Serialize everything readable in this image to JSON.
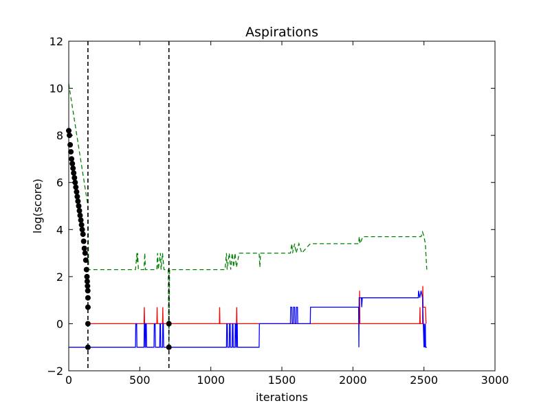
{
  "chart_data": {
    "type": "line",
    "title": "Aspirations",
    "xlabel": "iterations",
    "ylabel": "log(score)",
    "xlim": [
      0,
      3000
    ],
    "ylim": [
      -2,
      12
    ],
    "xticks": [
      "0",
      "500",
      "1000",
      "1500",
      "2000",
      "2500",
      "3000"
    ],
    "yticks": [
      "−2",
      "0",
      "2",
      "4",
      "6",
      "8",
      "10",
      "12"
    ],
    "grid": false,
    "legend": "none",
    "vlines": [
      135,
      705
    ],
    "series": [
      {
        "color": "#008000",
        "style": "dashed",
        "points": [
          [
            0,
            10.2
          ],
          [
            5,
            10.0
          ],
          [
            135,
            5.0
          ],
          [
            140,
            2.3
          ],
          [
            470,
            2.3
          ],
          [
            480,
            3.0
          ],
          [
            482,
            2.6
          ],
          [
            485,
            3.0
          ],
          [
            490,
            2.3
          ],
          [
            530,
            2.3
          ],
          [
            535,
            3.0
          ],
          [
            540,
            2.3
          ],
          [
            620,
            2.3
          ],
          [
            625,
            3.0
          ],
          [
            630,
            2.3
          ],
          [
            645,
            3.0
          ],
          [
            650,
            2.3
          ],
          [
            660,
            3.0
          ],
          [
            670,
            2.3
          ],
          [
            700,
            2.3
          ],
          [
            705,
            -1.0
          ],
          [
            710,
            2.3
          ],
          [
            1100,
            2.3
          ],
          [
            1110,
            3.0
          ],
          [
            1115,
            2.3
          ],
          [
            1130,
            3.0
          ],
          [
            1140,
            2.3
          ],
          [
            1150,
            3.0
          ],
          [
            1160,
            2.4
          ],
          [
            1170,
            3.0
          ],
          [
            1180,
            2.4
          ],
          [
            1200,
            3.0
          ],
          [
            1340,
            3.0
          ],
          [
            1345,
            2.4
          ],
          [
            1350,
            3.0
          ],
          [
            1560,
            3.0
          ],
          [
            1570,
            3.4
          ],
          [
            1575,
            3.0
          ],
          [
            1590,
            3.4
          ],
          [
            1600,
            3.0
          ],
          [
            1620,
            3.4
          ],
          [
            1640,
            3.0
          ],
          [
            1700,
            3.4
          ],
          [
            2040,
            3.4
          ],
          [
            2045,
            3.7
          ],
          [
            2050,
            3.4
          ],
          [
            2070,
            3.7
          ],
          [
            2480,
            3.7
          ],
          [
            2490,
            3.9
          ],
          [
            2500,
            3.7
          ],
          [
            2510,
            3.4
          ],
          [
            2515,
            2.8
          ],
          [
            2520,
            2.3
          ]
        ]
      },
      {
        "color": "#ff0000",
        "style": "solid",
        "points": [
          [
            135,
            0.0
          ],
          [
            530,
            0.0
          ],
          [
            532,
            0.7
          ],
          [
            534,
            0.0
          ],
          [
            620,
            0.0
          ],
          [
            622,
            0.7
          ],
          [
            624,
            0.0
          ],
          [
            660,
            0.0
          ],
          [
            662,
            0.7
          ],
          [
            664,
            0.0
          ],
          [
            1060,
            0.0
          ],
          [
            1062,
            0.7
          ],
          [
            1064,
            0.0
          ],
          [
            1180,
            0.0
          ],
          [
            1182,
            0.7
          ],
          [
            1184,
            0.0
          ],
          [
            2045,
            0.0
          ],
          [
            2047,
            1.4
          ],
          [
            2049,
            0.0
          ],
          [
            2470,
            0.0
          ],
          [
            2472,
            0.7
          ],
          [
            2474,
            0.0
          ],
          [
            2490,
            0.0
          ],
          [
            2492,
            1.6
          ],
          [
            2494,
            0.7
          ],
          [
            2510,
            0.7
          ],
          [
            2515,
            0.0
          ]
        ]
      },
      {
        "color": "#0000ff",
        "style": "solid",
        "points": [
          [
            0,
            -1.0
          ],
          [
            470,
            -1.0
          ],
          [
            472,
            0.0
          ],
          [
            478,
            0.0
          ],
          [
            480,
            -1.0
          ],
          [
            530,
            -1.0
          ],
          [
            532,
            0.0
          ],
          [
            536,
            0.0
          ],
          [
            538,
            -1.0
          ],
          [
            540,
            -1.0
          ],
          [
            542,
            0.0
          ],
          [
            546,
            0.0
          ],
          [
            548,
            -1.0
          ],
          [
            600,
            -1.0
          ],
          [
            602,
            0.0
          ],
          [
            608,
            0.0
          ],
          [
            610,
            -1.0
          ],
          [
            640,
            -1.0
          ],
          [
            642,
            0.0
          ],
          [
            646,
            0.0
          ],
          [
            648,
            -1.0
          ],
          [
            660,
            -1.0
          ],
          [
            662,
            0.0
          ],
          [
            666,
            0.0
          ],
          [
            668,
            -1.0
          ],
          [
            1110,
            -1.0
          ],
          [
            1112,
            0.0
          ],
          [
            1116,
            0.0
          ],
          [
            1118,
            -1.0
          ],
          [
            1130,
            -1.0
          ],
          [
            1132,
            0.0
          ],
          [
            1136,
            0.0
          ],
          [
            1138,
            -1.0
          ],
          [
            1150,
            -1.0
          ],
          [
            1152,
            0.0
          ],
          [
            1156,
            0.0
          ],
          [
            1158,
            -1.0
          ],
          [
            1170,
            -1.0
          ],
          [
            1172,
            0.0
          ],
          [
            1176,
            0.0
          ],
          [
            1178,
            -1.0
          ],
          [
            1180,
            -1.0
          ],
          [
            1182,
            0.0
          ],
          [
            1186,
            0.0
          ],
          [
            1188,
            -1.0
          ],
          [
            1340,
            -1.0
          ],
          [
            1342,
            0.0
          ],
          [
            1560,
            0.0
          ],
          [
            1562,
            0.7
          ],
          [
            1570,
            0.7
          ],
          [
            1572,
            0.0
          ],
          [
            1580,
            0.0
          ],
          [
            1582,
            0.7
          ],
          [
            1590,
            0.7
          ],
          [
            1592,
            0.0
          ],
          [
            1600,
            0.0
          ],
          [
            1602,
            0.7
          ],
          [
            1610,
            0.7
          ],
          [
            1612,
            0.0
          ],
          [
            1700,
            0.0
          ],
          [
            1702,
            0.7
          ],
          [
            2040,
            0.7
          ],
          [
            2042,
            -1.0
          ],
          [
            2044,
            1.1
          ],
          [
            2060,
            1.1
          ],
          [
            2062,
            0.7
          ],
          [
            2066,
            1.1
          ],
          [
            2460,
            1.1
          ],
          [
            2462,
            1.4
          ],
          [
            2470,
            1.1
          ],
          [
            2480,
            1.4
          ],
          [
            2490,
            1.1
          ],
          [
            2500,
            -1.0
          ],
          [
            2502,
            0.0
          ],
          [
            2506,
            -1.0
          ],
          [
            2510,
            0.0
          ],
          [
            2512,
            -1.0
          ],
          [
            2520,
            -1.0
          ]
        ]
      },
      {
        "color": "#000000",
        "style": "markers",
        "points": [
          [
            0,
            8.2
          ],
          [
            5,
            8.0
          ],
          [
            10,
            7.6
          ],
          [
            15,
            7.3
          ],
          [
            20,
            7.0
          ],
          [
            25,
            6.8
          ],
          [
            30,
            6.6
          ],
          [
            35,
            6.4
          ],
          [
            40,
            6.2
          ],
          [
            45,
            6.0
          ],
          [
            50,
            5.8
          ],
          [
            55,
            5.6
          ],
          [
            60,
            5.4
          ],
          [
            65,
            5.2
          ],
          [
            70,
            5.0
          ],
          [
            75,
            4.8
          ],
          [
            80,
            4.6
          ],
          [
            85,
            4.4
          ],
          [
            90,
            4.2
          ],
          [
            95,
            4.0
          ],
          [
            100,
            3.8
          ],
          [
            105,
            3.5
          ],
          [
            110,
            3.2
          ],
          [
            115,
            3.0
          ],
          [
            120,
            2.7
          ],
          [
            125,
            2.3
          ],
          [
            128,
            2.0
          ],
          [
            130,
            1.8
          ],
          [
            132,
            1.6
          ],
          [
            134,
            1.4
          ],
          [
            135,
            1.1
          ],
          [
            135,
            0.7
          ],
          [
            135,
            0.0
          ],
          [
            135,
            -1.0
          ],
          [
            705,
            0.0
          ],
          [
            705,
            -1.0
          ]
        ]
      }
    ]
  }
}
